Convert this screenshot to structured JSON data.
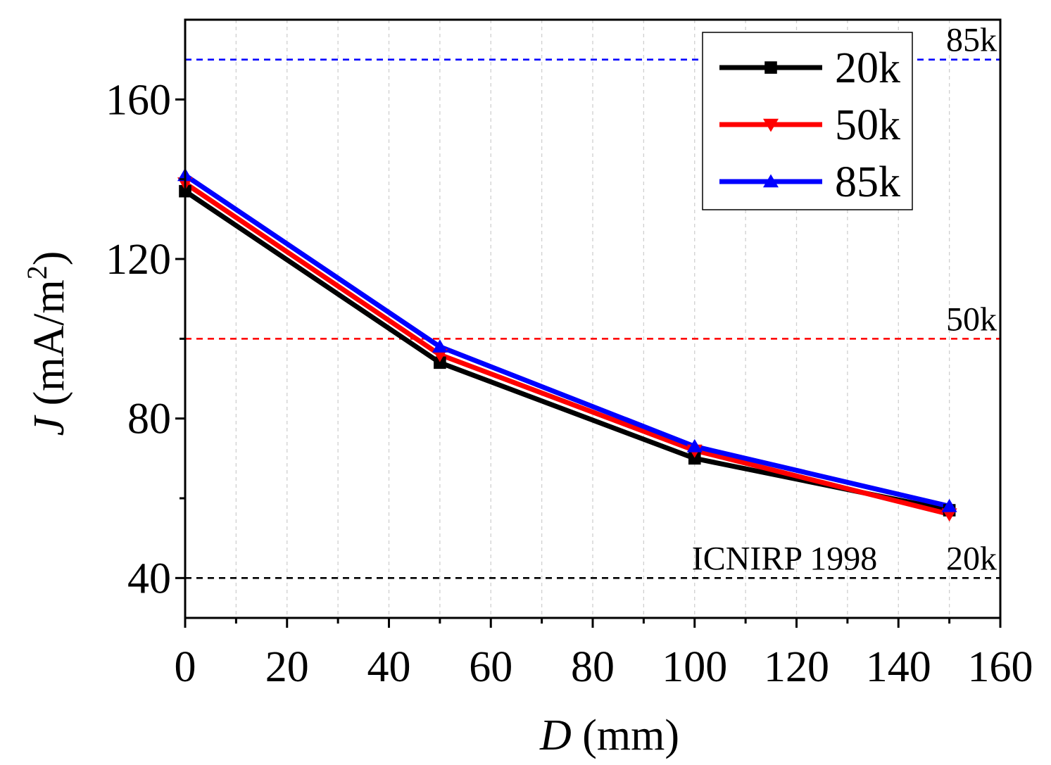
{
  "chart_data": {
    "type": "line",
    "title": "",
    "xlabel_italic": "D",
    "xlabel_rest": " (mm)",
    "ylabel_italic": "J",
    "ylabel_rest": " (mA/m",
    "ylabel_sup": "2",
    "ylabel_close": ")",
    "xlim": [
      0,
      160
    ],
    "ylim": [
      30,
      180
    ],
    "xticks": [
      0,
      20,
      40,
      60,
      80,
      100,
      120,
      140,
      160
    ],
    "yticks": [
      40,
      80,
      120,
      160
    ],
    "xminor": [
      10,
      30,
      50,
      70,
      90,
      110,
      130,
      150
    ],
    "yminor": [
      60,
      100,
      140
    ],
    "grid": "vertical dashed",
    "legend_position": "top-right",
    "series": [
      {
        "name": "20k",
        "marker": "square",
        "color": "#000000",
        "x": [
          0,
          50,
          100,
          150
        ],
        "y": [
          137,
          94,
          70,
          57
        ]
      },
      {
        "name": "50k",
        "marker": "triangle-down",
        "color": "#ff0000",
        "x": [
          0,
          50,
          100,
          150
        ],
        "y": [
          139,
          96,
          72,
          56
        ]
      },
      {
        "name": "85k",
        "marker": "triangle-up",
        "color": "#0000ff",
        "x": [
          0,
          50,
          100,
          150
        ],
        "y": [
          141,
          98,
          73,
          58
        ]
      }
    ],
    "reference_lines": [
      {
        "label": "85k",
        "value": 170,
        "color": "#0000ff"
      },
      {
        "label": "50k",
        "value": 100,
        "color": "#ff0000"
      },
      {
        "label": "20k",
        "value": 40,
        "color": "#000000"
      }
    ],
    "annotations": [
      {
        "text": "ICNIRP 1998",
        "x": 120,
        "y": 40
      }
    ]
  }
}
